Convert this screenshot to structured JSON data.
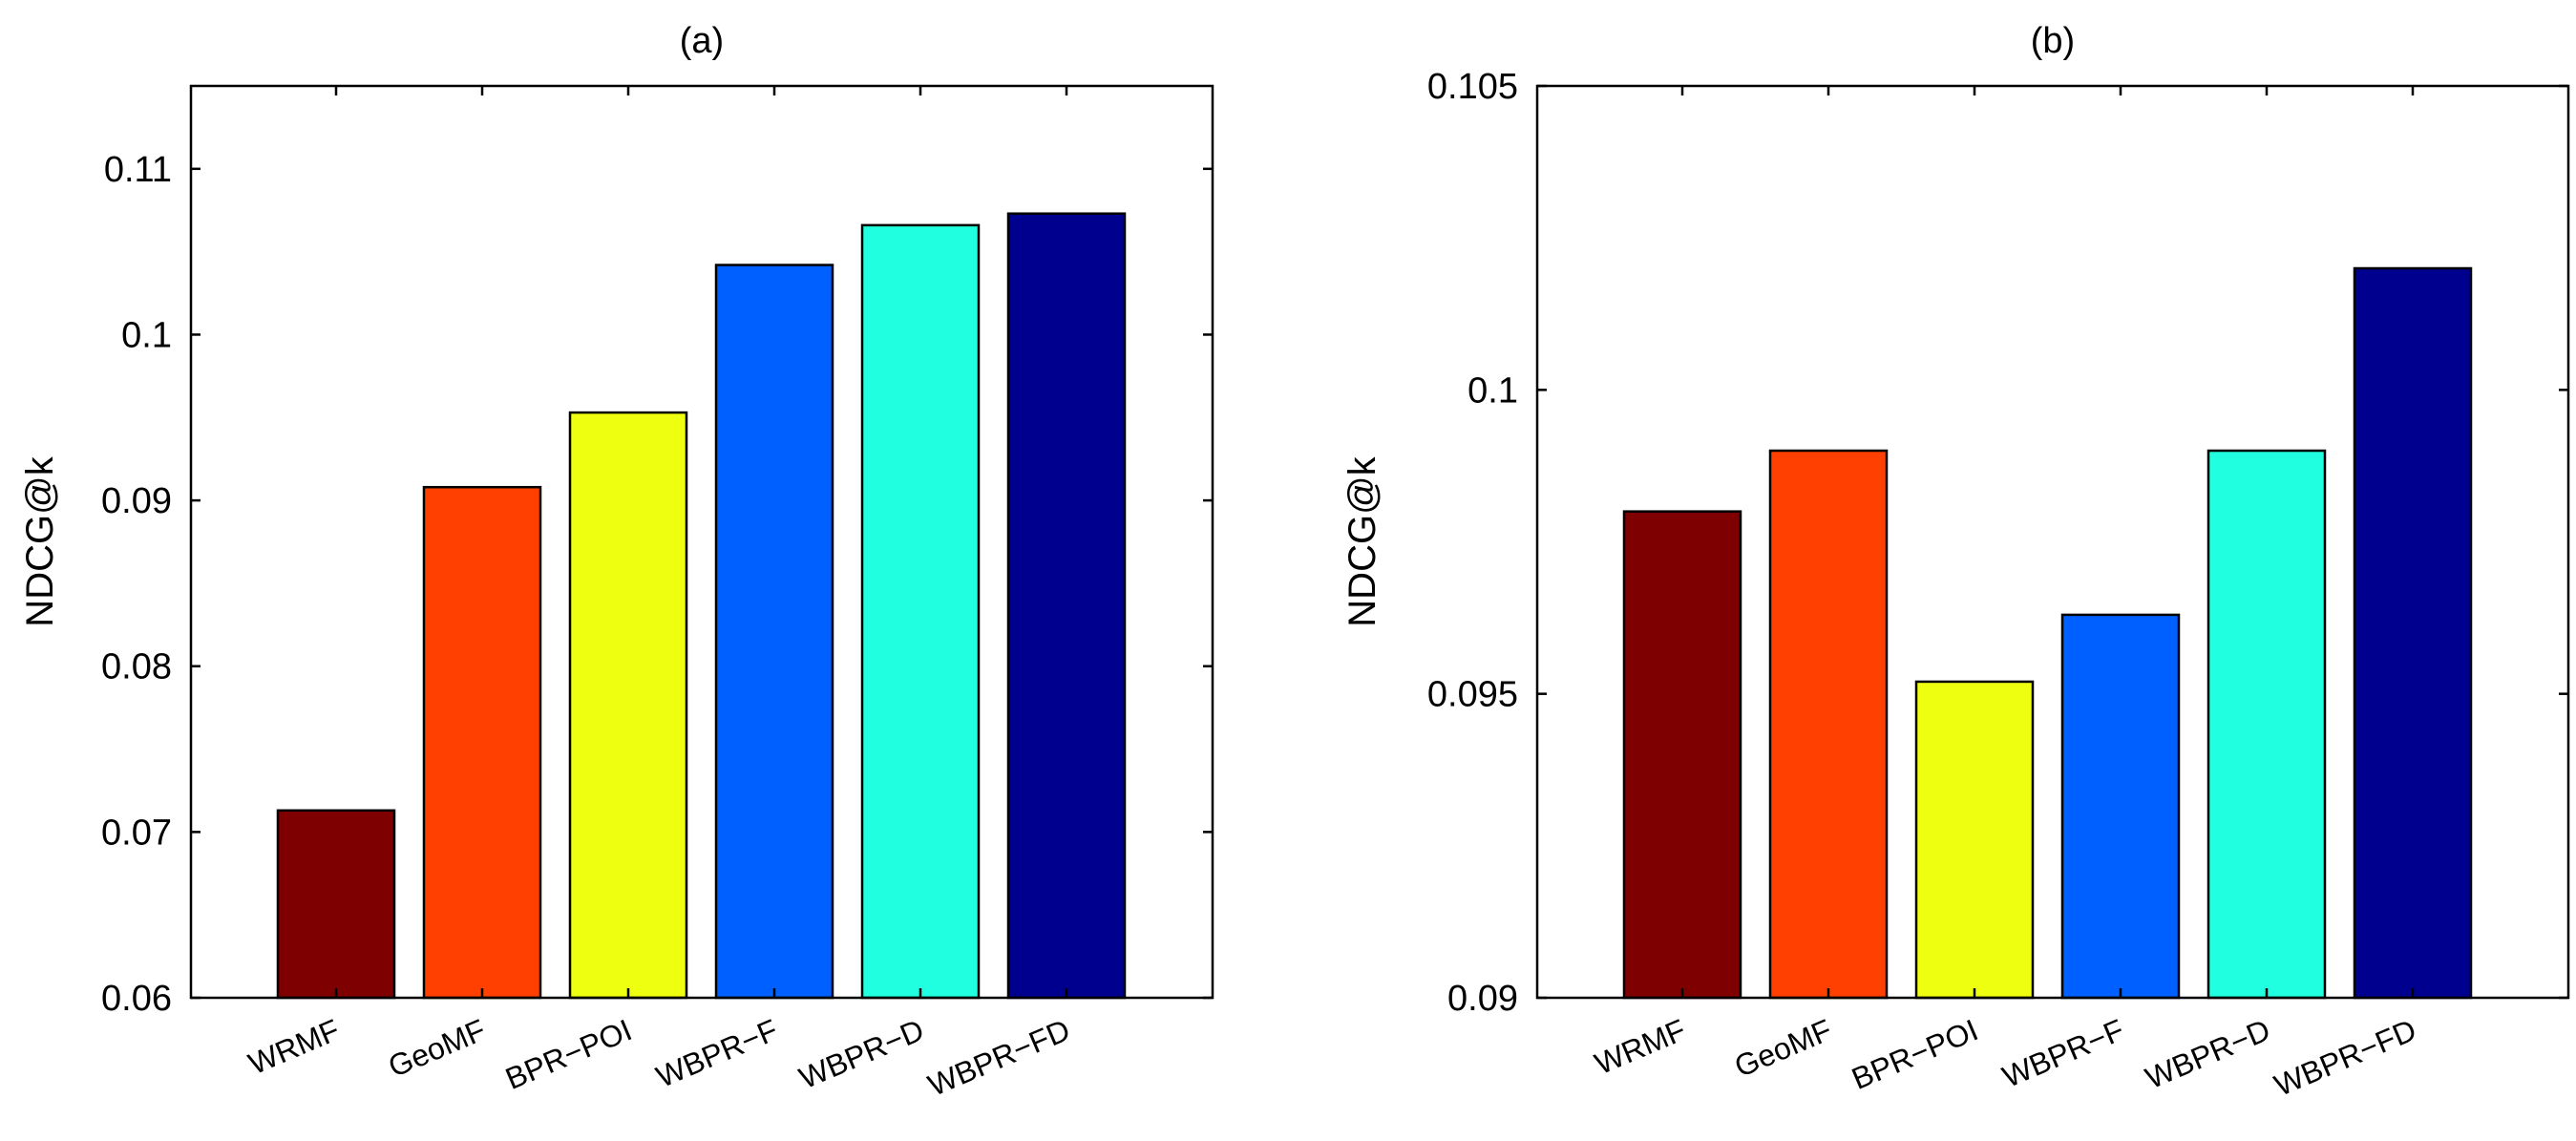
{
  "chart_data": [
    {
      "type": "bar",
      "title": "(a)",
      "xlabel": "",
      "ylabel": "NDCG@k",
      "categories": [
        "WRMF",
        "GeoMF",
        "BPR−POI",
        "WBPR−F",
        "WBPR−D",
        "WBPR−FD"
      ],
      "values": [
        0.0713,
        0.0908,
        0.0953,
        0.1042,
        0.1066,
        0.1073
      ],
      "colors": [
        "#7f0000",
        "#ff4000",
        "#efff10",
        "#0060ff",
        "#20ffdf",
        "#00008f"
      ],
      "ylim": [
        0.06,
        0.115
      ],
      "yticks": [
        0.06,
        0.07,
        0.08,
        0.09,
        0.1,
        0.11
      ],
      "ytick_labels": [
        "0.06",
        "0.07",
        "0.08",
        "0.09",
        "0.1",
        "0.11"
      ],
      "grid": false
    },
    {
      "type": "bar",
      "title": "(b)",
      "xlabel": "",
      "ylabel": "NDCG@k",
      "categories": [
        "WRMF",
        "GeoMF",
        "BPR−POI",
        "WBPR−F",
        "WBPR−D",
        "WBPR−FD"
      ],
      "values": [
        0.098,
        0.099,
        0.0952,
        0.0963,
        0.099,
        0.102
      ],
      "colors": [
        "#7f0000",
        "#ff4000",
        "#efff10",
        "#0060ff",
        "#20ffdf",
        "#00008f"
      ],
      "ylim": [
        0.09,
        0.105
      ],
      "yticks": [
        0.09,
        0.095,
        0.1,
        0.105
      ],
      "ytick_labels": [
        "0.09",
        "0.095",
        "0.1",
        "0.105"
      ],
      "grid": false
    }
  ]
}
